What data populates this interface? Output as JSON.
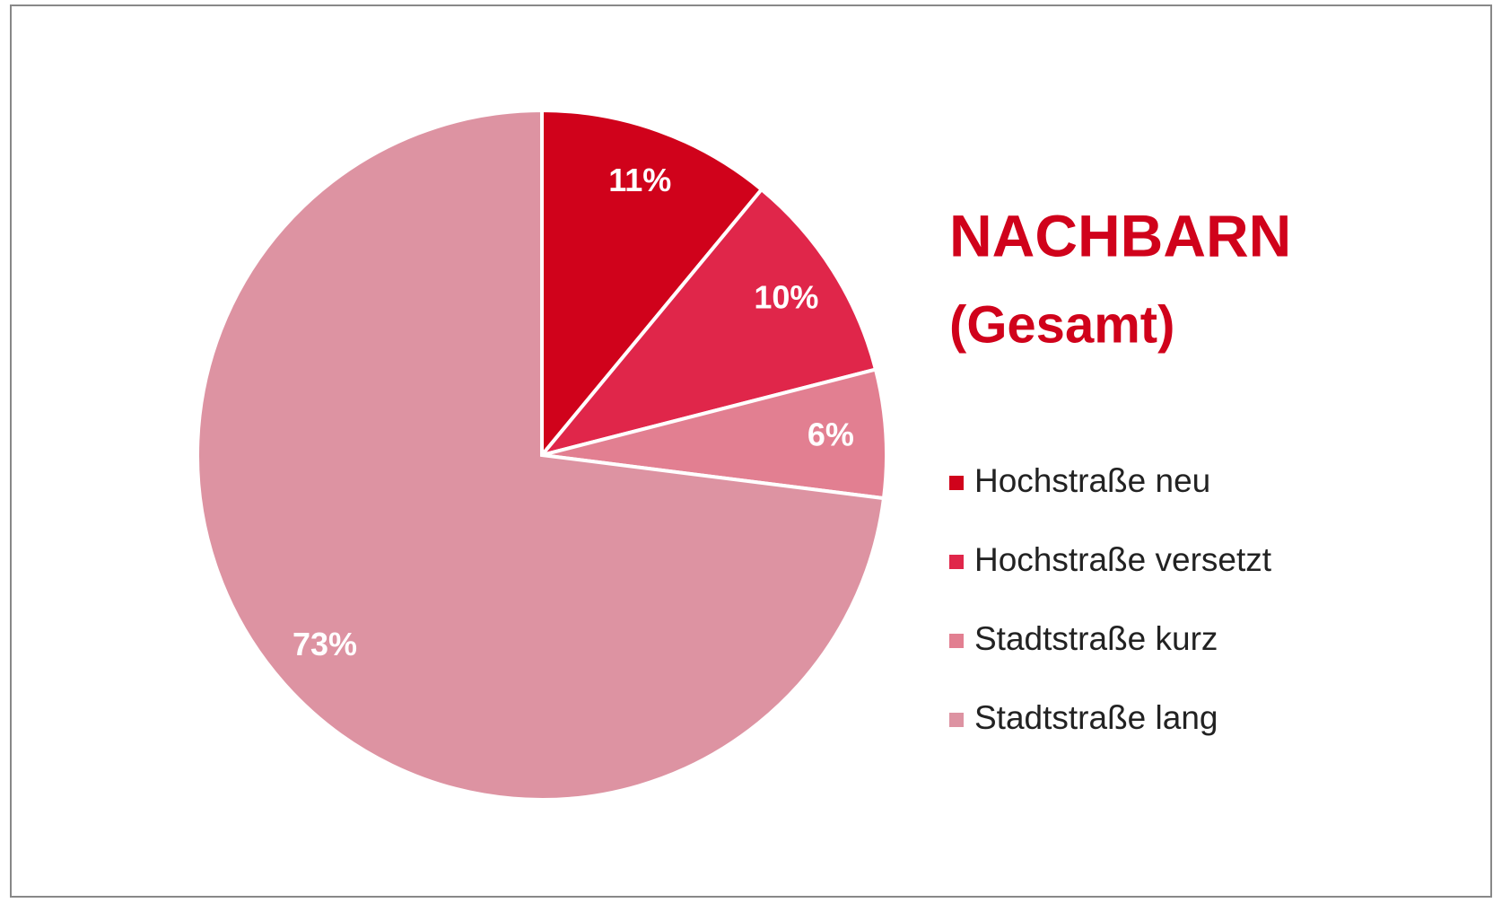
{
  "chart_data": {
    "type": "pie",
    "title": "NACHBARN",
    "subtitle": "(Gesamt)",
    "categories": [
      "Hochstraße neu",
      "Hochstraße versetzt",
      "Stadtstraße kurz",
      "Stadtstraße lang"
    ],
    "values": [
      11,
      10,
      6,
      73
    ],
    "value_labels": [
      "11%",
      "10%",
      "6%",
      "73%"
    ],
    "colors": [
      "#d0021b",
      "#e0264a",
      "#e27f91",
      "#dd93a2"
    ],
    "legend": "right"
  }
}
